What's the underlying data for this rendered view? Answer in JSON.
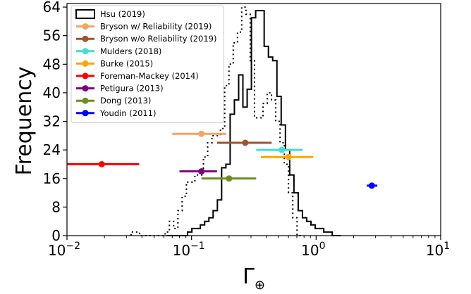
{
  "chart_data": {
    "type": "histogram-with-errorbars",
    "xscale": "log",
    "xlim": [
      0.01,
      10
    ],
    "ylim": [
      0,
      65
    ],
    "ylabel": "Frequency",
    "xlabel": "Γ⊕",
    "grid": false,
    "legend_placement": "top-left",
    "xticks": [
      {
        "value": 0.01,
        "base": "10",
        "exp": "−2"
      },
      {
        "value": 0.1,
        "base": "10",
        "exp": "−1"
      },
      {
        "value": 1,
        "base": "10",
        "exp": "0"
      },
      {
        "value": 10,
        "base": "10",
        "exp": "1"
      }
    ],
    "yticks": [
      "0",
      "8",
      "16",
      "24",
      "32",
      "40",
      "48",
      "56",
      "64"
    ],
    "histograms": [
      {
        "name": "Hsu (2019)",
        "style": "solid",
        "color": "#000000",
        "edges": [
          0.0628,
          0.0679,
          0.0735,
          0.0795,
          0.086,
          0.093,
          0.1006,
          0.1088,
          0.1177,
          0.1274,
          0.1378,
          0.149,
          0.1612,
          0.1744,
          0.1887,
          0.2041,
          0.2208,
          0.2389,
          0.2584,
          0.2795,
          0.3024,
          0.3271,
          0.3539,
          0.3828,
          0.4141,
          0.448,
          0.4847,
          0.5243,
          0.5672,
          0.6136,
          0.6638,
          0.7181,
          0.7769,
          0.8404,
          0.9092,
          0.9836,
          1.0641,
          1.1511,
          1.2453,
          1.3472,
          1.4574,
          1.5766
        ],
        "counts": [
          0,
          0,
          0,
          0,
          0,
          1,
          2,
          2,
          3,
          4,
          5,
          7,
          10,
          19,
          20,
          34,
          38,
          45,
          36,
          41,
          61,
          63,
          63,
          53,
          50,
          49,
          39,
          31,
          24,
          17,
          12,
          7,
          5,
          4,
          3,
          2,
          2,
          1,
          1,
          0,
          0
        ]
      },
      {
        "name": "",
        "style": "dotted",
        "color": "#000000",
        "edges": [
          0.0327,
          0.0354,
          0.0383,
          0.0414,
          0.0448,
          0.0485,
          0.0524,
          0.0567,
          0.0614,
          0.0664,
          0.0718,
          0.0777,
          0.084,
          0.0909,
          0.0984,
          0.1064,
          0.1151,
          0.1245,
          0.1347,
          0.1458,
          0.1577,
          0.1706,
          0.1846,
          0.1997,
          0.216,
          0.2337,
          0.2528,
          0.2735,
          0.2959,
          0.3201,
          0.3463,
          0.3747,
          0.4054,
          0.4385,
          0.4744,
          0.5133,
          0.5553,
          0.6007,
          0.6499,
          0.7031,
          0.7607
        ],
        "counts": [
          1,
          1,
          0,
          0,
          0,
          0,
          0,
          0,
          1,
          4,
          2,
          7,
          11,
          15,
          15,
          17,
          17,
          22,
          26,
          28,
          28,
          30,
          42,
          48,
          54,
          57,
          64,
          62,
          49,
          33,
          33,
          37,
          40,
          38,
          32,
          26,
          20,
          12,
          5,
          0
        ]
      }
    ],
    "series": [
      {
        "name": "Bryson w/ Reliability (2019)",
        "color": "#f4a460",
        "value": 0.12,
        "lo": 0.07,
        "hi": 0.19,
        "y": 28.5
      },
      {
        "name": "Bryson w/o Reliability (2019)",
        "color": "#a0522d",
        "value": 0.27,
        "lo": 0.16,
        "hi": 0.44,
        "y": 26.0
      },
      {
        "name": "Mulders (2018)",
        "color": "#40e0d0",
        "value": 0.53,
        "lo": 0.33,
        "hi": 0.78,
        "y": 24.0
      },
      {
        "name": "Burke (2015)",
        "color": "#ffa500",
        "value": 0.6,
        "lo": 0.36,
        "hi": 0.95,
        "y": 22.0
      },
      {
        "name": "Foreman-Mackey (2014)",
        "color": "#ff0000",
        "value": 0.019,
        "lo": 0.01,
        "hi": 0.038,
        "y": 20.0
      },
      {
        "name": "Petigura (2013)",
        "color": "#800080",
        "value": 0.12,
        "lo": 0.08,
        "hi": 0.16,
        "y": 18.0
      },
      {
        "name": "Dong (2013)",
        "color": "#6b8e23",
        "value": 0.2,
        "lo": 0.12,
        "hi": 0.33,
        "y": 16.0
      },
      {
        "name": "Youdin (2011)",
        "color": "#0000ff",
        "value": 2.8,
        "lo": 2.55,
        "hi": 3.1,
        "y": 14.0
      }
    ]
  }
}
